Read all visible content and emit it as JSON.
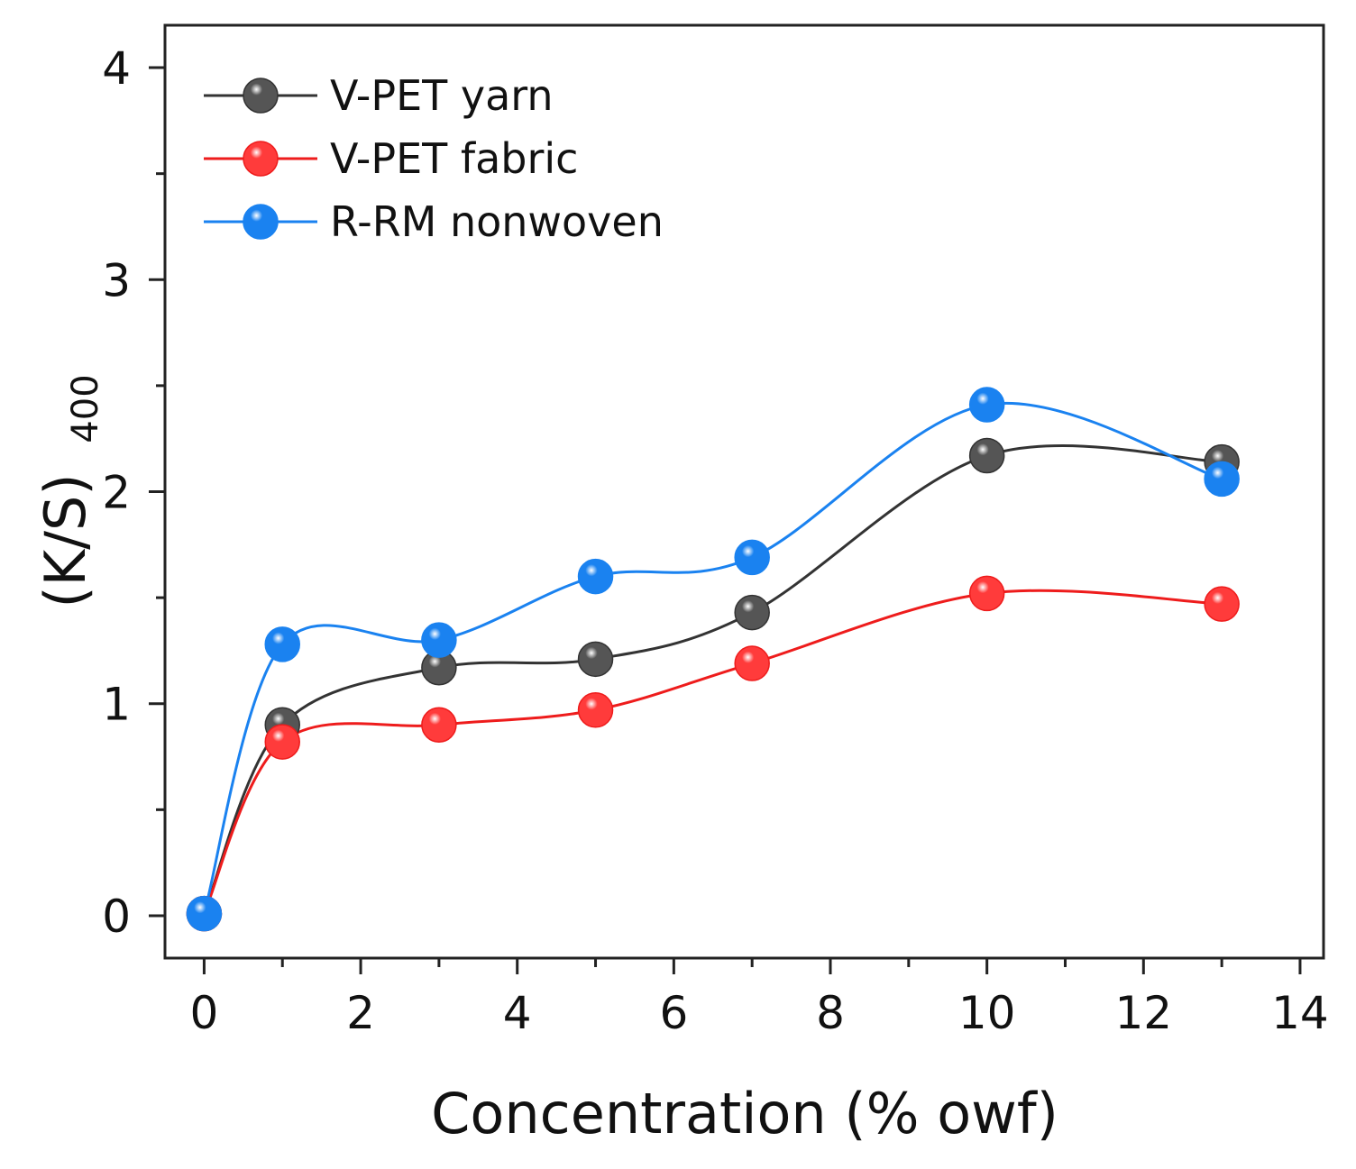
{
  "chart_data": {
    "type": "line",
    "xlabel": "Concentration (% owf)",
    "ylabel_main": "(K/S)",
    "ylabel_sub": "400",
    "xlim": [
      -0.5,
      14.3
    ],
    "ylim": [
      -0.2,
      4.2
    ],
    "x_ticks": [
      0,
      2,
      4,
      6,
      8,
      10,
      12,
      14
    ],
    "y_ticks": [
      0,
      1,
      2,
      3,
      4
    ],
    "x": [
      0,
      1,
      3,
      5,
      7,
      10,
      13
    ],
    "grid": false,
    "legend": "top-left",
    "series": [
      {
        "name": "V-PET yarn",
        "color": "#555555",
        "line_color": "#333333",
        "values": [
          0.01,
          0.9,
          1.17,
          1.21,
          1.43,
          2.17,
          2.14
        ]
      },
      {
        "name": "V-PET fabric",
        "color": "#ff3b3b",
        "line_color": "#ee1c1c",
        "values": [
          0.01,
          0.82,
          0.9,
          0.97,
          1.19,
          1.52,
          1.47
        ]
      },
      {
        "name": "R-RM nonwoven",
        "color": "#1a82f0",
        "line_color": "#1a82f0",
        "values": [
          0.01,
          1.28,
          1.3,
          1.6,
          1.69,
          2.41,
          2.06
        ]
      }
    ]
  }
}
